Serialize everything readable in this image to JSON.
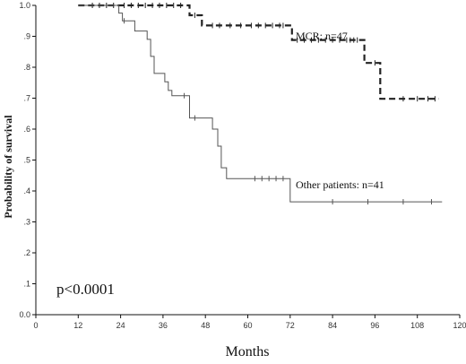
{
  "chart_data": {
    "type": "line",
    "xlabel": "Months",
    "ylabel": "Probability of survival",
    "xlim": [
      0,
      120
    ],
    "ylim": [
      0.0,
      1.0
    ],
    "x_ticks": [
      0,
      12,
      24,
      36,
      48,
      60,
      72,
      84,
      96,
      108,
      120
    ],
    "y_ticks": [
      0.0,
      0.1,
      0.2,
      0.3,
      0.4,
      0.5,
      0.6,
      0.7,
      0.8,
      0.9,
      1.0
    ],
    "y_tick_labels": [
      "0.0",
      ".1",
      ".2",
      ".3",
      ".4",
      ".5",
      ".6",
      ".7",
      ".8",
      ".9",
      "1.0"
    ],
    "grid": false,
    "series": [
      {
        "name": "MCR: n=47",
        "style": "dashed",
        "color": "#222222",
        "steps": [
          [
            12,
            1.0
          ],
          [
            43.5,
            1.0
          ],
          [
            43.5,
            0.968
          ],
          [
            47,
            0.968
          ],
          [
            47,
            0.935
          ],
          [
            72.5,
            0.935
          ],
          [
            72.5,
            0.888
          ],
          [
            93,
            0.888
          ],
          [
            93,
            0.814
          ],
          [
            97.5,
            0.814
          ],
          [
            97.5,
            0.698
          ],
          [
            114,
            0.698
          ]
        ],
        "censors": [
          16,
          18,
          20,
          22,
          25,
          27,
          29,
          31,
          33,
          35,
          37,
          39,
          41,
          45,
          50,
          52,
          55,
          58,
          61,
          63,
          65,
          67,
          69,
          70,
          74,
          76,
          78,
          80,
          82,
          84,
          86,
          88,
          89,
          90,
          91,
          96,
          104,
          108,
          111,
          113
        ]
      },
      {
        "name": "Other patients: n=41",
        "style": "solid",
        "color": "#555555",
        "steps": [
          [
            12,
            1.0
          ],
          [
            23.5,
            1.0
          ],
          [
            23.5,
            0.975
          ],
          [
            24.5,
            0.975
          ],
          [
            24.5,
            0.95
          ],
          [
            28,
            0.95
          ],
          [
            28,
            0.917
          ],
          [
            31.5,
            0.917
          ],
          [
            31.5,
            0.89
          ],
          [
            32.5,
            0.89
          ],
          [
            32.5,
            0.835
          ],
          [
            33.5,
            0.835
          ],
          [
            33.5,
            0.78
          ],
          [
            36.5,
            0.78
          ],
          [
            36.5,
            0.753
          ],
          [
            37.5,
            0.753
          ],
          [
            37.5,
            0.725
          ],
          [
            38.5,
            0.725
          ],
          [
            38.5,
            0.708
          ],
          [
            43.5,
            0.708
          ],
          [
            43.5,
            0.636
          ],
          [
            50,
            0.636
          ],
          [
            50,
            0.6
          ],
          [
            51.5,
            0.6
          ],
          [
            51.5,
            0.545
          ],
          [
            52.5,
            0.545
          ],
          [
            52.5,
            0.475
          ],
          [
            54,
            0.475
          ],
          [
            54,
            0.44
          ],
          [
            72,
            0.44
          ],
          [
            72,
            0.365
          ],
          [
            115,
            0.365
          ]
        ],
        "censors": [
          25,
          42,
          45,
          62,
          64,
          66,
          68,
          70,
          84,
          94,
          104,
          112
        ]
      }
    ],
    "annotations": [
      "MCR: n=47",
      "Other patients: n=41",
      "p<0.0001"
    ]
  }
}
